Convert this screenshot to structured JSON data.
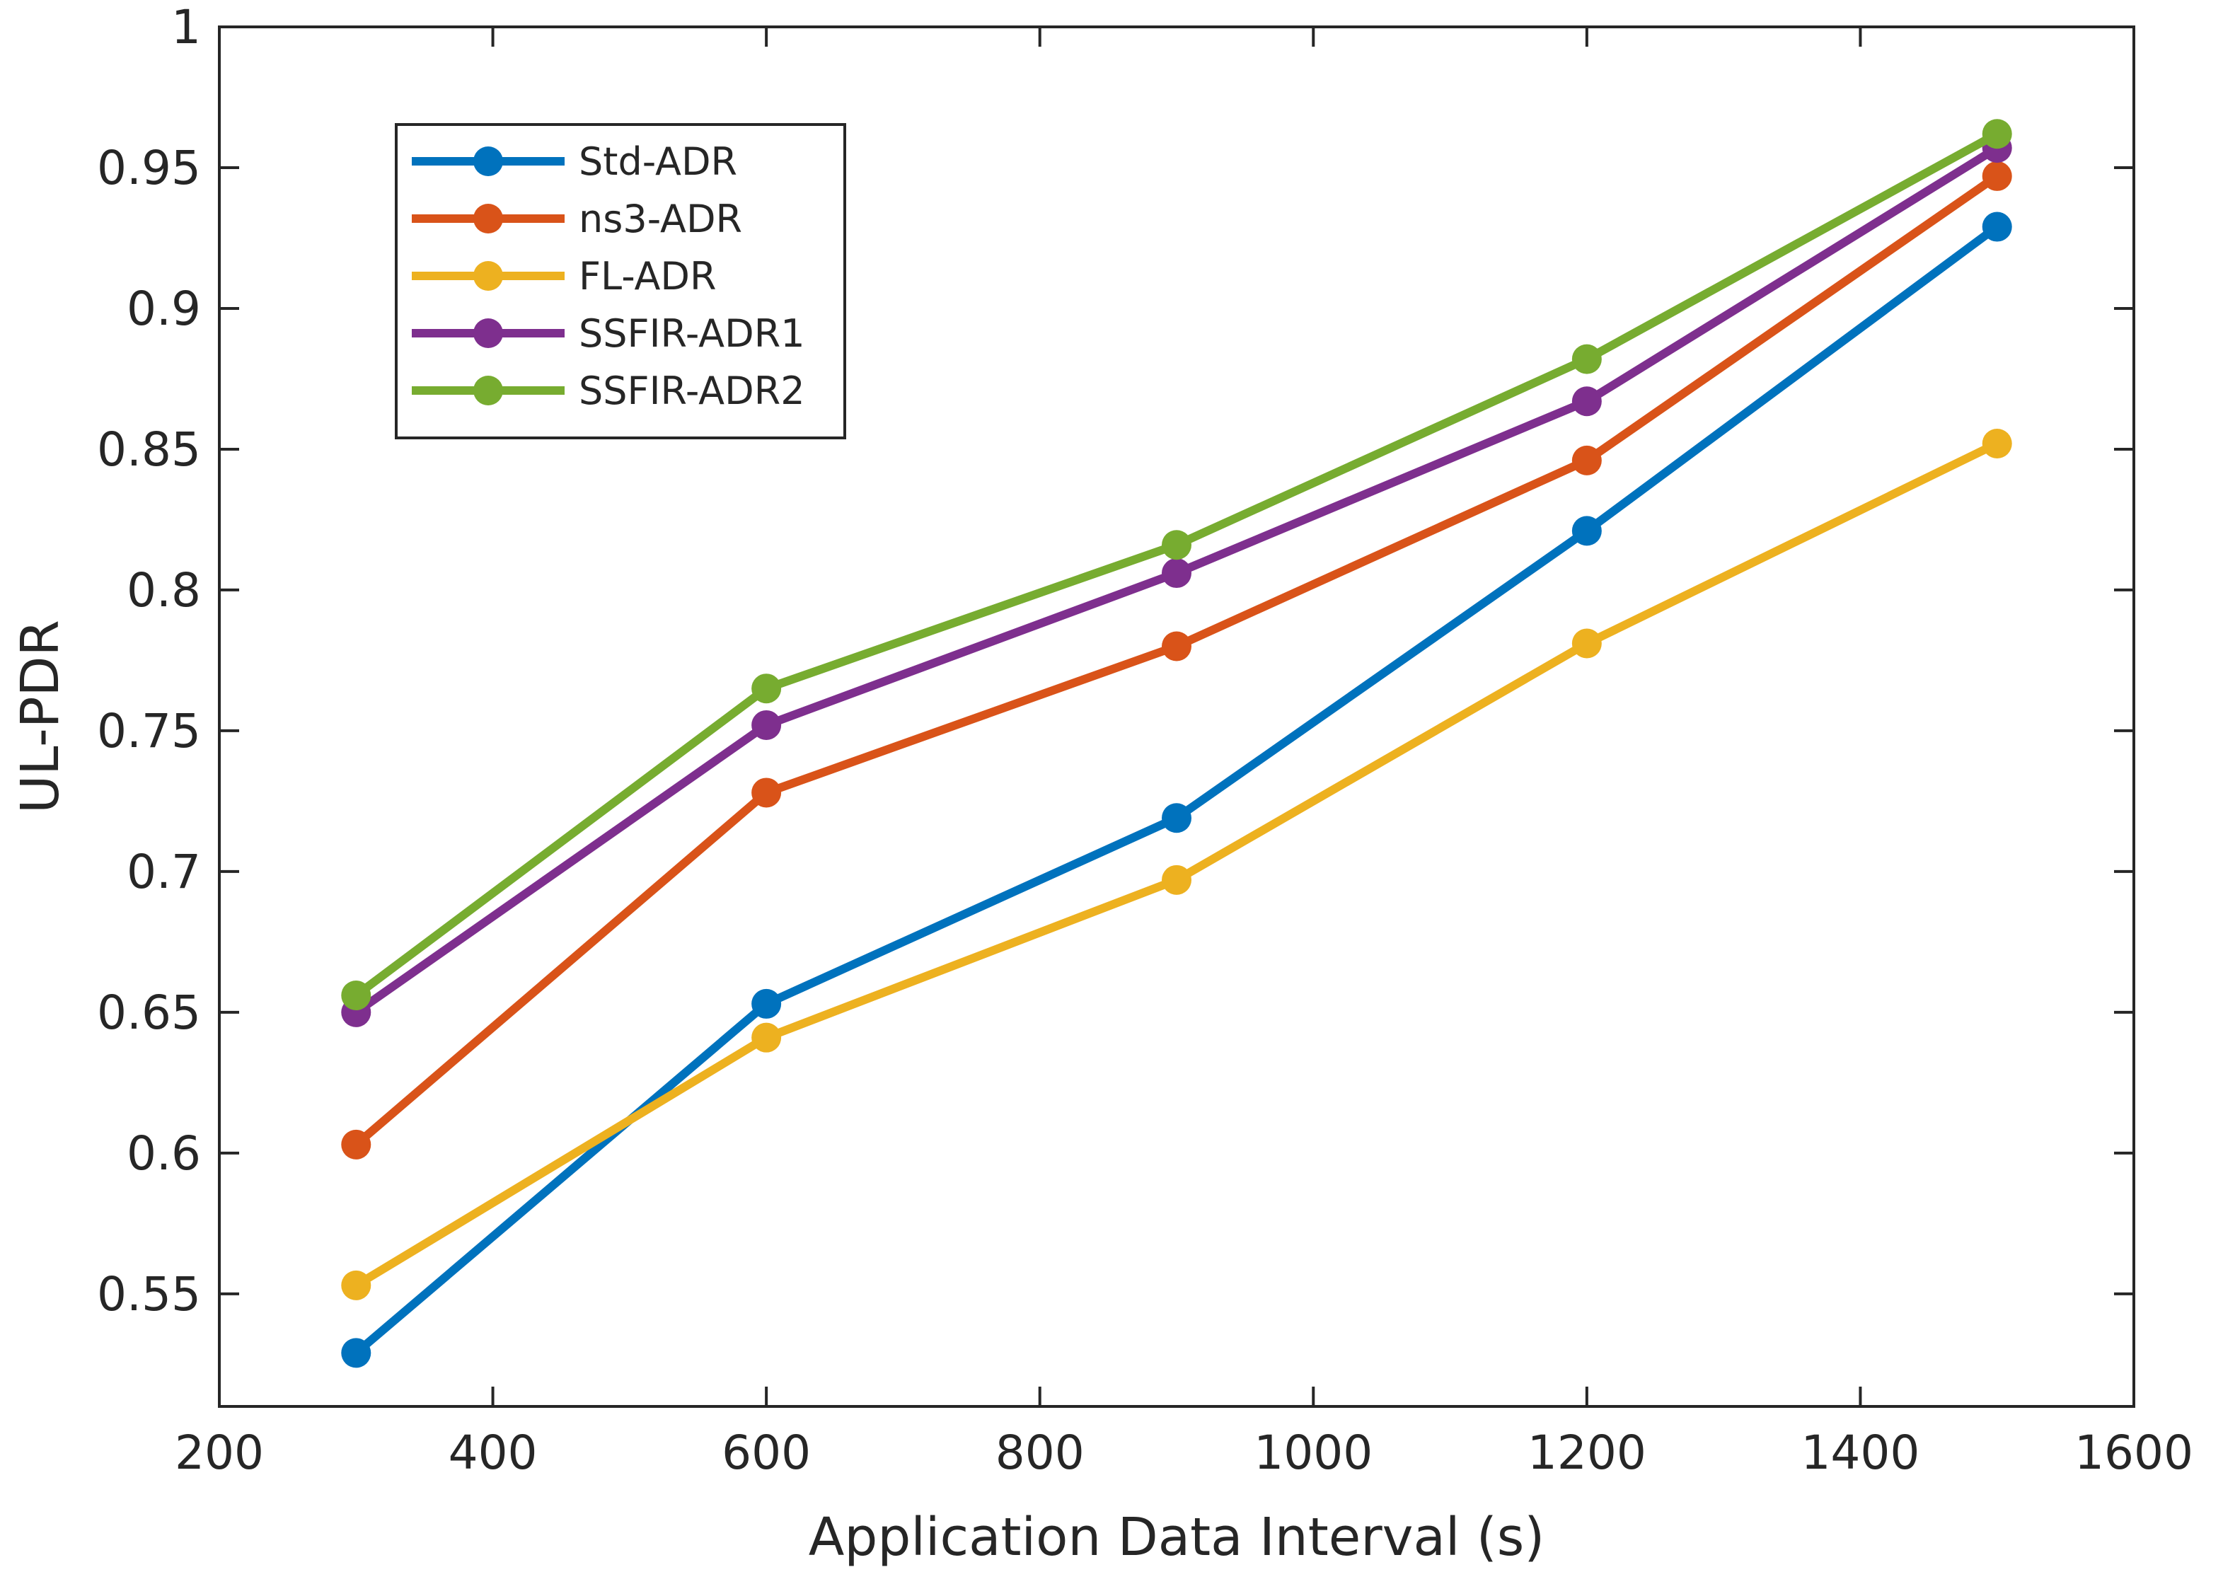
{
  "chart_data": {
    "type": "line",
    "title": "",
    "xlabel": "Application Data Interval (s)",
    "ylabel": "UL-PDR",
    "xlim": [
      200,
      1600
    ],
    "ylim": [
      0.51,
      1.0
    ],
    "xticks": [
      200,
      400,
      600,
      800,
      1000,
      1200,
      1400,
      1600
    ],
    "yticks": [
      0.55,
      0.6,
      0.65,
      0.7,
      0.75,
      0.8,
      0.85,
      0.9,
      0.95,
      1
    ],
    "xtick_labels": [
      "200",
      "400",
      "600",
      "800",
      "1000",
      "1200",
      "1400",
      "1600"
    ],
    "ytick_labels": [
      "0.55",
      "0.6",
      "0.65",
      "0.7",
      "0.75",
      "0.8",
      "0.85",
      "0.9",
      "0.95",
      "1"
    ],
    "grid": false,
    "legend_position": "top-left",
    "x": [
      300,
      600,
      900,
      1200,
      1500
    ],
    "series": [
      {
        "name": "Std-ADR",
        "color": "#0072BD",
        "values": [
          0.529,
          0.653,
          0.719,
          0.821,
          0.929
        ]
      },
      {
        "name": "ns3-ADR",
        "color": "#D95319",
        "values": [
          0.603,
          0.728,
          0.78,
          0.846,
          0.947
        ]
      },
      {
        "name": "FL-ADR",
        "color": "#EDB120",
        "values": [
          0.553,
          0.641,
          0.697,
          0.781,
          0.852
        ]
      },
      {
        "name": "SSFIR-ADR1",
        "color": "#7E2F8E",
        "values": [
          0.65,
          0.752,
          0.806,
          0.867,
          0.957
        ]
      },
      {
        "name": "SSFIR-ADR2",
        "color": "#77AC30",
        "values": [
          0.656,
          0.765,
          0.816,
          0.882,
          0.962
        ]
      }
    ]
  }
}
